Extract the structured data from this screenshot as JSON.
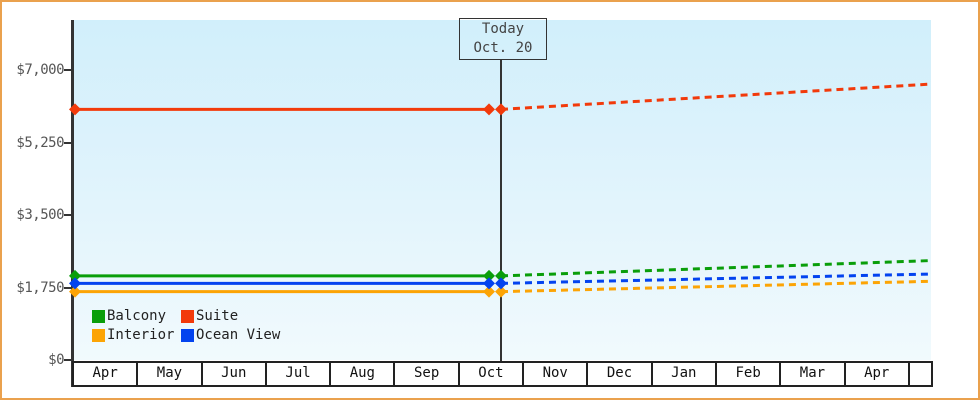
{
  "frame": {
    "border_color": "#eaa14e",
    "background_color": "#ffffff",
    "plot_gradient_top": "#d1effb",
    "plot_gradient_bottom": "#f1fafd",
    "axis_color": "#333333"
  },
  "chart_data": {
    "type": "line",
    "title": "",
    "x_categories": [
      "Apr",
      "May",
      "Jun",
      "Jul",
      "Aug",
      "Sep",
      "Oct",
      "Nov",
      "Dec",
      "Jan",
      "Feb",
      "Mar",
      "Apr"
    ],
    "y_axis": {
      "tick_labels": [
        "$0",
        "$1,750",
        "$3,500",
        "$5,250",
        "$7,000"
      ],
      "tick_values": [
        0,
        1750,
        3500,
        5250,
        7000
      ],
      "ylim": [
        0,
        7000
      ]
    },
    "today_annotation": {
      "line1": "Today",
      "line2": "Oct. 20"
    },
    "series": [
      {
        "name": "Balcony",
        "color": "#0a9e0a",
        "value_today": 2030,
        "forecast_end_value": 2400
      },
      {
        "name": "Suite",
        "color": "#f23a0b",
        "value_today": 6050,
        "forecast_end_value": 6660
      },
      {
        "name": "Interior",
        "color": "#fca405",
        "value_today": 1650,
        "forecast_end_value": 1900
      },
      {
        "name": "Ocean View",
        "color": "#0343ef",
        "value_today": 1850,
        "forecast_end_value": 2075
      }
    ],
    "layout_hints": {
      "solid_segment": "flat historical price from left edge (Apr) to Today (Oct. 20)",
      "dashed_segment": "forecast rising linearly from Today to right edge (Apr)",
      "legend_position": "bottom-left inside plot, 2 columns",
      "grid": "off"
    },
    "legend_order": [
      "Balcony",
      "Suite",
      "Interior",
      "Ocean View"
    ]
  }
}
